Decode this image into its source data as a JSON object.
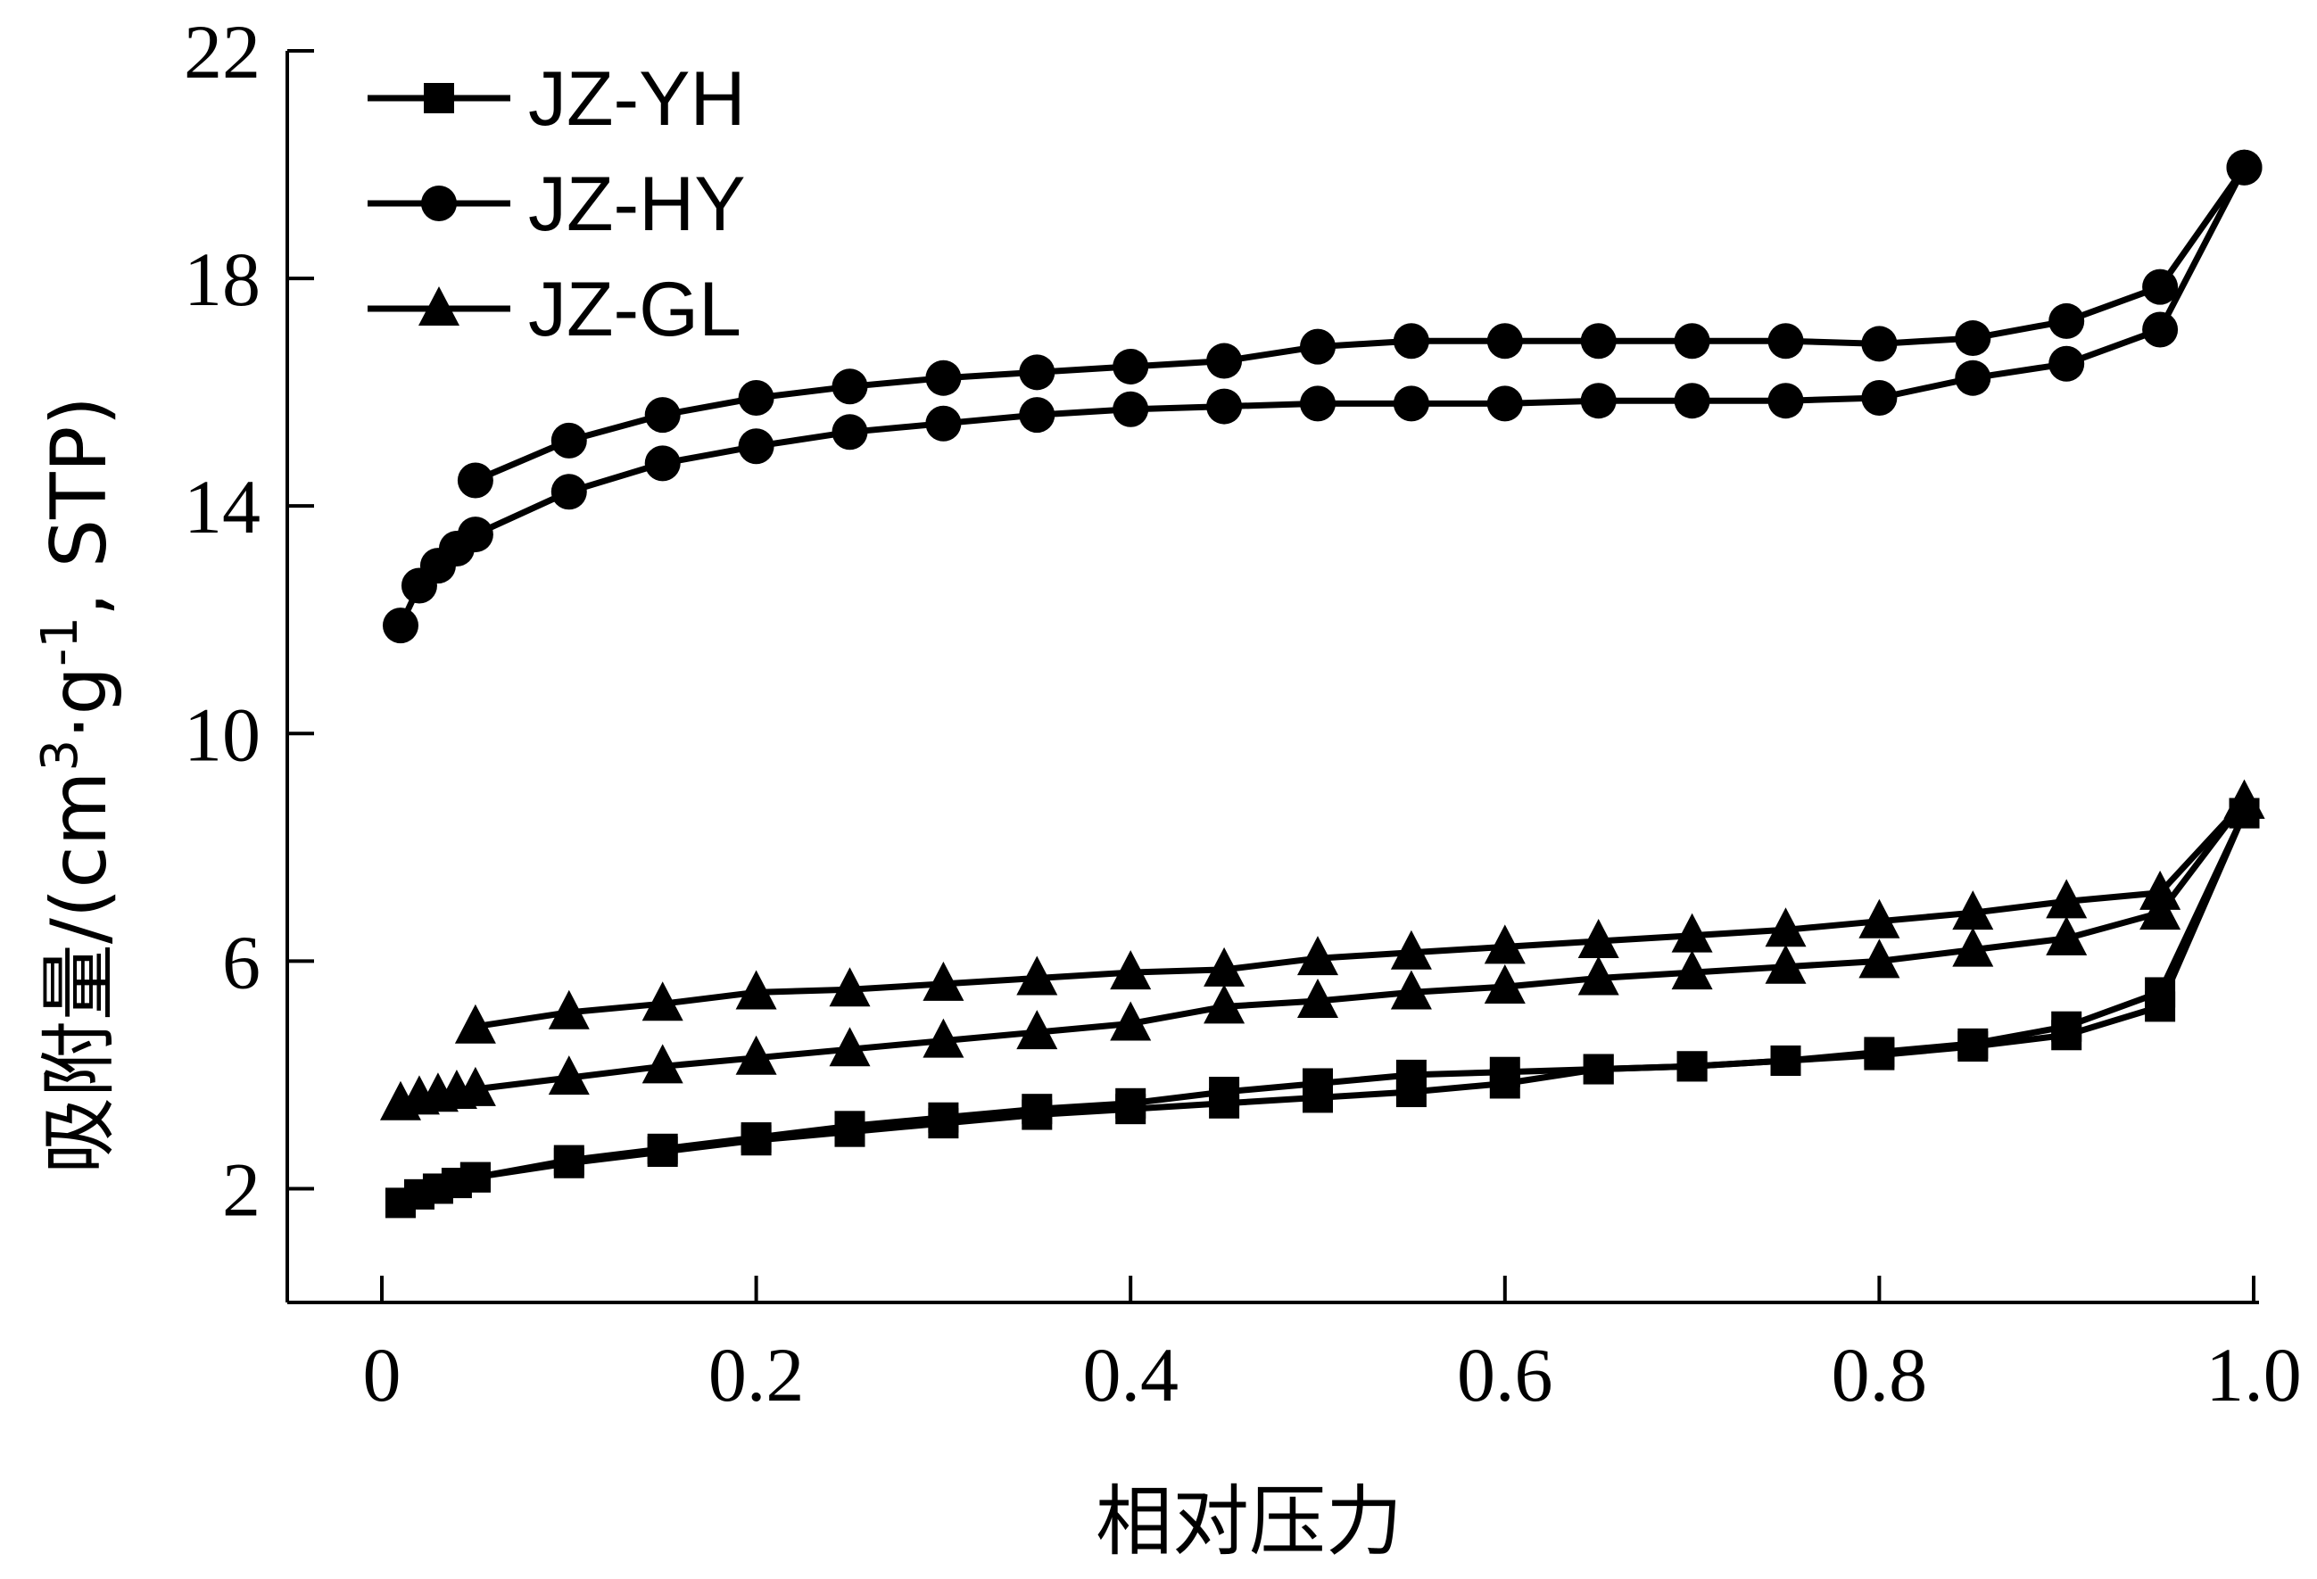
{
  "chart_data": {
    "type": "line",
    "title": "",
    "xlabel": "相对压力",
    "ylabel": {
      "prefix": "吸附量/(cm",
      "sup1": "3",
      "mid": "·g",
      "sup2": "-1",
      "suffix": ", STP)"
    },
    "xlim": [
      -0.05,
      1.0
    ],
    "ylim": [
      0,
      22
    ],
    "xticks": [
      0,
      0.2,
      0.4,
      0.6,
      0.8,
      1.0
    ],
    "xtick_labels": [
      "0",
      "0.2",
      "0.4",
      "0.6",
      "0.8",
      "1.0"
    ],
    "yticks": [
      2,
      6,
      10,
      14,
      18,
      22
    ],
    "ytick_labels": [
      "2",
      "6",
      "10",
      "14",
      "18",
      "22"
    ],
    "grid": false,
    "legend_position": "top-left",
    "series": [
      {
        "name": "JZ-YH",
        "marker": "square",
        "adsorption": {
          "x": [
            0.01,
            0.02,
            0.03,
            0.04,
            0.05,
            0.1,
            0.15,
            0.2,
            0.25,
            0.3,
            0.35,
            0.4,
            0.45,
            0.5,
            0.55,
            0.6,
            0.65,
            0.7,
            0.75,
            0.8,
            0.85,
            0.9,
            0.95,
            0.995
          ],
          "y": [
            1.75,
            1.9,
            2.0,
            2.1,
            2.2,
            2.45,
            2.65,
            2.85,
            3.0,
            3.15,
            3.3,
            3.4,
            3.5,
            3.6,
            3.7,
            3.85,
            4.1,
            4.15,
            4.25,
            4.35,
            4.5,
            4.7,
            5.2,
            8.6
          ]
        },
        "desorption": {
          "x": [
            0.995,
            0.95,
            0.9,
            0.85,
            0.8,
            0.75,
            0.7,
            0.65,
            0.6,
            0.55,
            0.5,
            0.45,
            0.4,
            0.35,
            0.3,
            0.25,
            0.2,
            0.15,
            0.1,
            0.05
          ],
          "y": [
            8.6,
            5.45,
            4.85,
            4.55,
            4.4,
            4.25,
            4.15,
            4.1,
            4.05,
            4.0,
            3.85,
            3.7,
            3.5,
            3.4,
            3.25,
            3.1,
            2.9,
            2.7,
            2.5,
            2.2
          ]
        }
      },
      {
        "name": "JZ-HY",
        "marker": "circle",
        "adsorption": {
          "x": [
            0.01,
            0.02,
            0.03,
            0.04,
            0.05,
            0.1,
            0.15,
            0.2,
            0.25,
            0.3,
            0.35,
            0.4,
            0.45,
            0.5,
            0.55,
            0.6,
            0.65,
            0.7,
            0.75,
            0.8,
            0.85,
            0.9,
            0.95,
            0.995
          ],
          "y": [
            11.9,
            12.6,
            12.95,
            13.25,
            13.5,
            14.25,
            14.75,
            15.05,
            15.3,
            15.45,
            15.6,
            15.7,
            15.75,
            15.8,
            15.8,
            15.8,
            15.85,
            15.85,
            15.85,
            15.9,
            16.25,
            16.5,
            17.1,
            19.95
          ]
        },
        "desorption": {
          "x": [
            0.995,
            0.95,
            0.9,
            0.85,
            0.8,
            0.75,
            0.7,
            0.65,
            0.6,
            0.55,
            0.5,
            0.45,
            0.4,
            0.35,
            0.3,
            0.25,
            0.2,
            0.15,
            0.1,
            0.05
          ],
          "y": [
            19.95,
            17.85,
            17.25,
            16.95,
            16.85,
            16.9,
            16.9,
            16.9,
            16.9,
            16.9,
            16.8,
            16.55,
            16.45,
            16.35,
            16.25,
            16.1,
            15.9,
            15.6,
            15.15,
            14.45
          ]
        }
      },
      {
        "name": "JZ-GL",
        "marker": "triangle",
        "adsorption": {
          "x": [
            0.01,
            0.02,
            0.03,
            0.04,
            0.05,
            0.1,
            0.15,
            0.2,
            0.25,
            0.3,
            0.35,
            0.4,
            0.45,
            0.5,
            0.55,
            0.6,
            0.65,
            0.7,
            0.75,
            0.8,
            0.85,
            0.9,
            0.95,
            0.995
          ],
          "y": [
            3.5,
            3.6,
            3.65,
            3.7,
            3.75,
            3.95,
            4.15,
            4.3,
            4.45,
            4.6,
            4.75,
            4.9,
            5.2,
            5.3,
            5.45,
            5.55,
            5.7,
            5.8,
            5.9,
            6.0,
            6.2,
            6.4,
            6.85,
            8.8
          ]
        },
        "desorption": {
          "x": [
            0.995,
            0.95,
            0.9,
            0.85,
            0.8,
            0.75,
            0.7,
            0.65,
            0.6,
            0.55,
            0.5,
            0.45,
            0.4,
            0.35,
            0.3,
            0.25,
            0.2,
            0.15,
            0.1,
            0.05
          ],
          "y": [
            8.8,
            7.2,
            7.05,
            6.85,
            6.7,
            6.55,
            6.45,
            6.35,
            6.25,
            6.15,
            6.05,
            5.85,
            5.8,
            5.7,
            5.6,
            5.5,
            5.45,
            5.25,
            5.1,
            4.85
          ]
        }
      }
    ]
  }
}
